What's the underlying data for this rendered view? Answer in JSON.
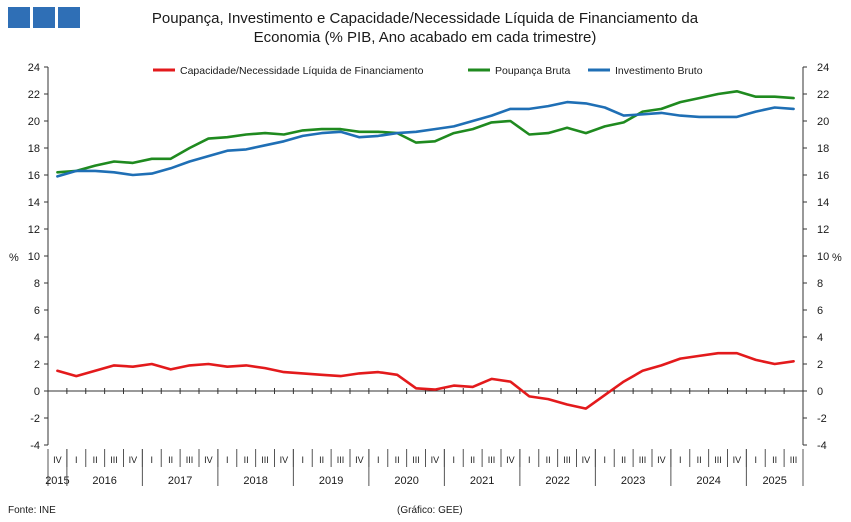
{
  "header": {
    "title_line1": "Poupança, Investimento  e Capacidade/Necessidade Líquida de Financiamento da",
    "title_line2": "Economia (% PIB, Ano acabado em cada trimestre)"
  },
  "footer": {
    "source": "Fonte: INE",
    "credit": "(Gráfico: GEE)"
  },
  "colors": {
    "capacidade": "#e31a1c",
    "poupanca": "#1f8a1f",
    "investimento": "#1f6fb5",
    "brand": "#2f6fb6"
  },
  "chart_data": {
    "type": "line",
    "title": "Poupança, Investimento  e Capacidade/Necessidade Líquida de Financiamento da Economia (% PIB, Ano acabado em cada trimestre)",
    "ylabel": "%",
    "ylabel_right": "%",
    "ylim": [
      -4,
      24
    ],
    "yticks": [
      -4,
      -2,
      0,
      2,
      4,
      6,
      8,
      10,
      12,
      14,
      16,
      18,
      20,
      22,
      24
    ],
    "ytick_labels": [
      "-4",
      "-2",
      "0",
      "2",
      "4",
      "6",
      "8",
      "10",
      "12",
      "14",
      "16",
      "18",
      "20",
      "22",
      "24"
    ],
    "grid": false,
    "legend_position": "top",
    "quarters": [
      "IV",
      "I",
      "II",
      "III",
      "IV",
      "I",
      "II",
      "III",
      "IV",
      "I",
      "II",
      "III",
      "IV",
      "I",
      "II",
      "III",
      "IV",
      "I",
      "II",
      "III",
      "IV",
      "I",
      "II",
      "III",
      "IV",
      "I",
      "II",
      "III",
      "IV",
      "I",
      "II",
      "III",
      "IV",
      "I",
      "II",
      "III",
      "IV",
      "I",
      "II",
      "III"
    ],
    "years": [
      {
        "label": "2015",
        "start": 0,
        "end": 0
      },
      {
        "label": "2016",
        "start": 1,
        "end": 4
      },
      {
        "label": "2017",
        "start": 5,
        "end": 8
      },
      {
        "label": "2018",
        "start": 9,
        "end": 12
      },
      {
        "label": "2019",
        "start": 13,
        "end": 16
      },
      {
        "label": "2020",
        "start": 17,
        "end": 20
      },
      {
        "label": "2021",
        "start": 21,
        "end": 24
      },
      {
        "label": "2022",
        "start": 25,
        "end": 28
      },
      {
        "label": "2023",
        "start": 29,
        "end": 32
      },
      {
        "label": "2024",
        "start": 33,
        "end": 36
      },
      {
        "label": "2025",
        "start": 37,
        "end": 39
      }
    ],
    "series": [
      {
        "key": "capacidade",
        "name": "Capacidade/Necessidade Líquida de Financiamento",
        "values": [
          1.5,
          1.1,
          1.5,
          1.9,
          1.8,
          2.0,
          1.6,
          1.9,
          2.0,
          1.8,
          1.9,
          1.7,
          1.4,
          1.3,
          1.2,
          1.1,
          1.3,
          1.4,
          1.2,
          0.2,
          0.1,
          0.4,
          0.3,
          0.9,
          0.7,
          -0.4,
          -0.6,
          -1.0,
          -1.3,
          -0.3,
          0.7,
          1.5,
          1.9,
          2.4,
          2.6,
          2.8,
          2.8,
          2.3,
          2.0,
          2.2
        ]
      },
      {
        "key": "poupanca",
        "name": "Poupança Bruta",
        "values": [
          16.2,
          16.3,
          16.7,
          17.0,
          16.9,
          17.2,
          17.2,
          18.0,
          18.7,
          18.8,
          19.0,
          19.1,
          19.0,
          19.3,
          19.4,
          19.4,
          19.2,
          19.2,
          19.1,
          18.4,
          18.5,
          19.1,
          19.4,
          19.9,
          20.0,
          19.0,
          19.1,
          19.5,
          19.1,
          19.6,
          19.9,
          20.7,
          20.9,
          21.4,
          21.7,
          22.0,
          22.2,
          21.8,
          21.8,
          21.7
        ]
      },
      {
        "key": "investimento",
        "name": "Investimento Bruto",
        "values": [
          15.9,
          16.3,
          16.3,
          16.2,
          16.0,
          16.1,
          16.5,
          17.0,
          17.4,
          17.8,
          17.9,
          18.2,
          18.5,
          18.9,
          19.1,
          19.2,
          18.8,
          18.9,
          19.1,
          19.2,
          19.4,
          19.6,
          20.0,
          20.4,
          20.9,
          20.9,
          21.1,
          21.4,
          21.3,
          21.0,
          20.4,
          20.5,
          20.6,
          20.4,
          20.3,
          20.3,
          20.3,
          20.7,
          21.0,
          20.9
        ]
      }
    ]
  }
}
